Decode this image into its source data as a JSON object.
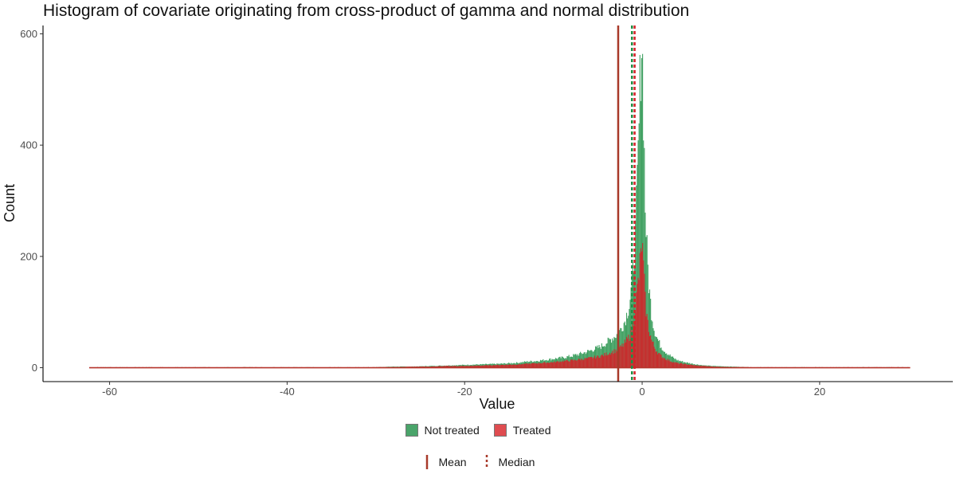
{
  "chart_data": {
    "type": "bar",
    "title": "Histogram of covariate originating from cross-product of gamma and normal distribution",
    "xlabel": "Value",
    "ylabel": "Count",
    "xlim": [
      -67.5,
      35
    ],
    "ylim": [
      -25,
      615
    ],
    "xticks": [
      -60,
      -40,
      -20,
      0,
      20
    ],
    "yticks": [
      0,
      200,
      400,
      600
    ],
    "xtick_labels": [
      "-60",
      "-40",
      "-20",
      "0",
      "20"
    ],
    "ytick_labels": [
      "0",
      "200",
      "400",
      "600"
    ],
    "data_range": [
      -62.3,
      30.2
    ],
    "grid": false,
    "legend_position": "bottom",
    "series": [
      {
        "name": "Not treated",
        "color": "#1f8f45",
        "bins": [
          [
            -30,
            1
          ],
          [
            -28,
            2
          ],
          [
            -26,
            2
          ],
          [
            -24,
            3
          ],
          [
            -22,
            4
          ],
          [
            -20,
            5
          ],
          [
            -18,
            6
          ],
          [
            -16,
            7
          ],
          [
            -14,
            9
          ],
          [
            -13,
            11
          ],
          [
            -12,
            12
          ],
          [
            -11,
            14
          ],
          [
            -10,
            16
          ],
          [
            -9,
            18
          ],
          [
            -8,
            21
          ],
          [
            -7,
            25
          ],
          [
            -6,
            30
          ],
          [
            -5,
            36
          ],
          [
            -4.5,
            40
          ],
          [
            -4,
            46
          ],
          [
            -3.5,
            52
          ],
          [
            -3,
            58
          ],
          [
            -2.5,
            68
          ],
          [
            -2,
            84
          ],
          [
            -1.5,
            112
          ],
          [
            -1.2,
            150
          ],
          [
            -1,
            190
          ],
          [
            -0.8,
            240
          ],
          [
            -0.6,
            330
          ],
          [
            -0.4,
            430
          ],
          [
            -0.3,
            500
          ],
          [
            -0.2,
            560
          ],
          [
            -0.1,
            590
          ],
          [
            0,
            545
          ],
          [
            0.1,
            470
          ],
          [
            0.2,
            380
          ],
          [
            0.3,
            290
          ],
          [
            0.5,
            210
          ],
          [
            0.7,
            150
          ],
          [
            1,
            100
          ],
          [
            1.3,
            70
          ],
          [
            1.6,
            55
          ],
          [
            2,
            40
          ],
          [
            2.5,
            30
          ],
          [
            3,
            23
          ],
          [
            3.5,
            17
          ],
          [
            4,
            13
          ],
          [
            5,
            9
          ],
          [
            6,
            6
          ],
          [
            7,
            4
          ],
          [
            8,
            3
          ],
          [
            10,
            2
          ],
          [
            12,
            1
          ]
        ]
      },
      {
        "name": "Treated",
        "color": "#d62028",
        "bins": [
          [
            -30,
            1
          ],
          [
            -28,
            1
          ],
          [
            -26,
            2
          ],
          [
            -24,
            2
          ],
          [
            -22,
            3
          ],
          [
            -20,
            3
          ],
          [
            -18,
            4
          ],
          [
            -16,
            5
          ],
          [
            -14,
            6
          ],
          [
            -13,
            7
          ],
          [
            -12,
            8
          ],
          [
            -11,
            9
          ],
          [
            -10,
            10
          ],
          [
            -9,
            12
          ],
          [
            -8,
            13
          ],
          [
            -7,
            15
          ],
          [
            -6,
            17
          ],
          [
            -5,
            20
          ],
          [
            -4.5,
            22
          ],
          [
            -4,
            25
          ],
          [
            -3.5,
            28
          ],
          [
            -3,
            31
          ],
          [
            -2.5,
            36
          ],
          [
            -2,
            44
          ],
          [
            -1.5,
            56
          ],
          [
            -1.2,
            70
          ],
          [
            -1,
            85
          ],
          [
            -0.8,
            110
          ],
          [
            -0.6,
            140
          ],
          [
            -0.4,
            165
          ],
          [
            -0.3,
            185
          ],
          [
            -0.2,
            200
          ],
          [
            -0.1,
            225
          ],
          [
            0,
            205
          ],
          [
            0.1,
            180
          ],
          [
            0.2,
            150
          ],
          [
            0.3,
            120
          ],
          [
            0.5,
            90
          ],
          [
            0.7,
            70
          ],
          [
            1,
            50
          ],
          [
            1.3,
            38
          ],
          [
            1.6,
            30
          ],
          [
            2,
            22
          ],
          [
            2.5,
            17
          ],
          [
            3,
            13
          ],
          [
            3.5,
            10
          ],
          [
            4,
            8
          ],
          [
            5,
            6
          ],
          [
            6,
            4
          ],
          [
            7,
            3
          ],
          [
            8,
            2
          ],
          [
            10,
            1
          ],
          [
            12,
            1
          ]
        ]
      }
    ],
    "reference_lines": [
      {
        "kind": "Mean",
        "x": -2.7,
        "color": "#a83a2a",
        "style": "solid"
      },
      {
        "kind": "Median",
        "group": "Not treated",
        "x": -1.15,
        "color": "#1f8f45",
        "style": "dashed"
      },
      {
        "kind": "Median",
        "group": "Treated",
        "x": -0.85,
        "color": "#d62028",
        "style": "dashed"
      }
    ],
    "legend_fill": [
      {
        "label": "Not treated",
        "color": "#1f8f45"
      },
      {
        "label": "Treated",
        "color": "#d62028"
      }
    ],
    "legend_lines": [
      {
        "label": "Mean",
        "style": "solid",
        "color": "#a83a2a"
      },
      {
        "label": "Median",
        "style": "dashed",
        "color": "#a83a2a"
      }
    ]
  }
}
